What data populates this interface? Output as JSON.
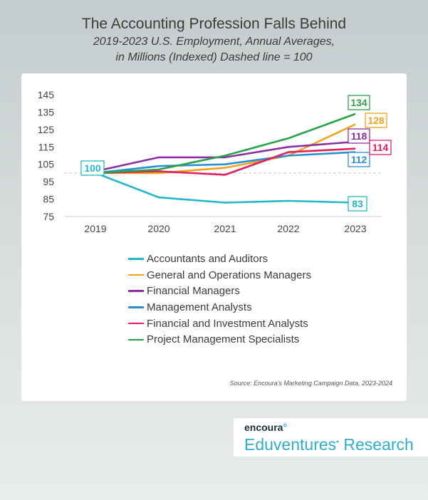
{
  "header": {
    "title": "The Accounting Profession Falls Behind",
    "subtitle_line1": "2019-2023 U.S. Employment, Annual Averages,",
    "subtitle_line2": "in Millions (Indexed) Dashed line = 100"
  },
  "source": "Source: Encoura's Marketing Campaign Data, 2023-2024",
  "brand": {
    "name": "encoura",
    "research_line": "Eduventures",
    "research_suffix": " Research"
  },
  "chart_data": {
    "type": "line",
    "categories": [
      "2019",
      "2020",
      "2021",
      "2022",
      "2023"
    ],
    "ylim": [
      75,
      145
    ],
    "yticks": [
      75,
      85,
      95,
      105,
      115,
      125,
      135,
      145
    ],
    "grid": false,
    "legend_position": "bottom",
    "series": [
      {
        "name": "Accountants and Auditors",
        "color": "#22b8c9",
        "values": [
          100,
          86,
          83,
          84,
          83
        ],
        "end_label": "83",
        "start_label": "100"
      },
      {
        "name": "General and Operations Managers",
        "color": "#f2a21c",
        "values": [
          100,
          100,
          103,
          110,
          128
        ],
        "end_label": "128"
      },
      {
        "name": "Financial Managers",
        "color": "#8b2fa3",
        "values": [
          101,
          109,
          109,
          115,
          118
        ],
        "end_label": "118"
      },
      {
        "name": "Management Analysts",
        "color": "#2b8fd6",
        "values": [
          100,
          104,
          105,
          110,
          112
        ],
        "end_label": "112"
      },
      {
        "name": "Financial and Investment Analysts",
        "color": "#e0215e",
        "values": [
          100,
          101,
          99,
          112,
          114
        ],
        "end_label": "114"
      },
      {
        "name": "Project Management Specialists",
        "color": "#2aa24a",
        "values": [
          100,
          102,
          110,
          120,
          134
        ],
        "end_label": "134"
      }
    ]
  }
}
